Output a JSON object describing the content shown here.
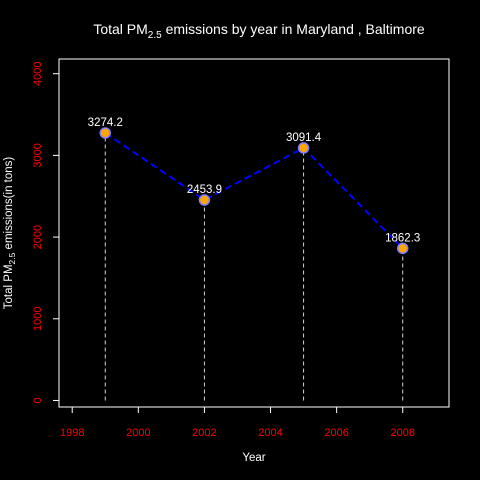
{
  "chart_data": {
    "type": "line",
    "title": {
      "prefix": "Total PM",
      "subscript": "2.5",
      "suffix": " emissions by year in Maryland , Baltimore"
    },
    "xlabel": "Year",
    "ylabel": {
      "prefix": "Total PM",
      "subscript": "2.5",
      "suffix": " emissions(in tons)"
    },
    "x": [
      1999,
      2002,
      2005,
      2008
    ],
    "values": [
      3274.2,
      2453.9,
      3091.4,
      1862.3
    ],
    "data_labels": [
      "3274.2",
      "2453.9",
      "3091.4",
      "1862.3"
    ],
    "xlim": [
      1997.6,
      1999.0,
      2009.4
    ],
    "xlim_range": [
      1997.6,
      2009.4
    ],
    "ylim": [
      -80,
      4180
    ],
    "xticks": [
      1998,
      2000,
      2002,
      2004,
      2006,
      2008
    ],
    "yticks": [
      0,
      1000,
      2000,
      3000,
      4000
    ],
    "grid": false,
    "legend": "none",
    "colors": {
      "background": "#000000",
      "foreground": "#ffffff",
      "tick_labels": "#ff0000",
      "line": "#0000ff",
      "point_fill": "#ffa500",
      "point_stroke": "#8080ff",
      "drop_lines": "#d3d3d3"
    }
  }
}
